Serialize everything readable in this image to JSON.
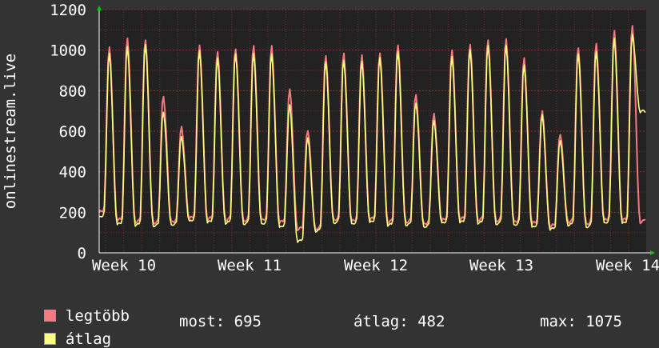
{
  "chart_data": {
    "type": "line",
    "ylabel": "onlinestream.live",
    "ylim": [
      0,
      1200
    ],
    "yticks": [
      0,
      200,
      400,
      600,
      800,
      1000,
      1200
    ],
    "xticks": [
      "Week 10",
      "Week 11",
      "Week 12",
      "Week 13",
      "Week 14"
    ],
    "grid": true,
    "background": "#222222",
    "gridColor": "#8a3030",
    "series": [
      {
        "name": "legtöbb",
        "color": "#f47a80",
        "daily_peaks": [
          1015,
          1065,
          1060,
          775,
          620,
          1025,
          1000,
          1015,
          1025,
          1020,
          810,
          610,
          980,
          985,
          975,
          990,
          1035,
          785,
          685,
          1000,
          1035,
          1060,
          1060,
          960,
          700,
          590,
          1020,
          1035,
          1095,
          1125,
          760
        ],
        "daily_troughs": [
          200,
          160,
          150,
          145,
          150,
          170,
          165,
          160,
          155,
          160,
          150,
          115,
          115,
          160,
          155,
          165,
          150,
          150,
          140,
          160,
          165,
          160,
          155,
          150,
          145,
          130,
          150,
          140,
          160,
          160,
          150
        ]
      },
      {
        "name": "átlag",
        "color": "#fdfd80",
        "daily_peaks": [
          985,
          1020,
          1035,
          700,
          575,
          1000,
          965,
          990,
          990,
          985,
          730,
          570,
          950,
          955,
          945,
          965,
          1000,
          745,
          655,
          970,
          1005,
          1030,
          1030,
          930,
          680,
          555,
          990,
          1000,
          1060,
          1075,
          695
        ],
        "daily_troughs": [
          175,
          140,
          135,
          130,
          135,
          155,
          150,
          145,
          140,
          140,
          125,
          55,
          105,
          145,
          140,
          150,
          135,
          135,
          125,
          145,
          150,
          145,
          140,
          135,
          125,
          115,
          135,
          125,
          145,
          145,
          695
        ]
      }
    ]
  },
  "legend": {
    "max_label": "legtöbb",
    "avg_label": "átlag",
    "max_color": "#f47a80",
    "avg_color": "#fdfd80"
  },
  "stats": {
    "now": "most: 695",
    "avg": "átlag: 482",
    "max": "max: 1075"
  }
}
